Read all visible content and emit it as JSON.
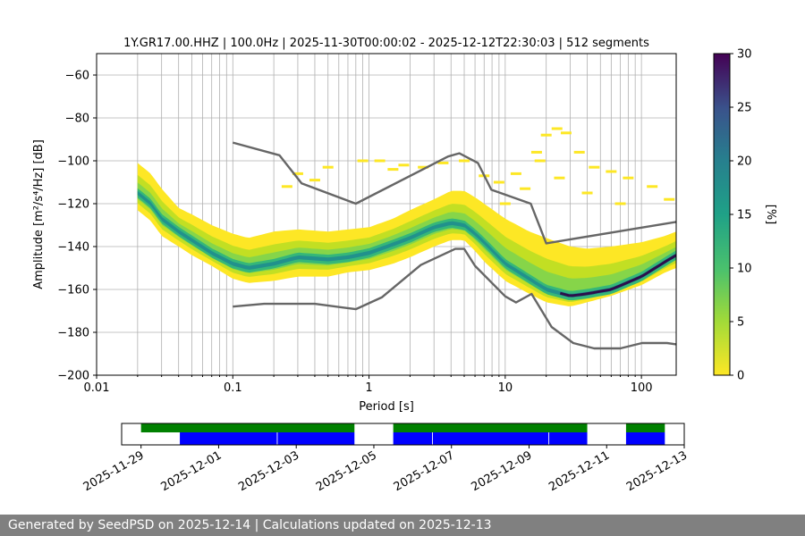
{
  "chart_data": {
    "type": "heatmap",
    "title": "1Y.GR17.00.HHZ | 100.0Hz | 2025-11-30T00:00:02 - 2025-12-12T22:30:03 | 512 segments",
    "xlabel": "Period [s]",
    "ylabel": "Amplitude [m²/s⁴/Hz] [dB]",
    "x_scale": "log",
    "xlim": [
      0.01,
      180
    ],
    "ylim": [
      -200,
      -50
    ],
    "x_ticks": [
      0.01,
      0.1,
      1,
      10,
      100
    ],
    "x_tick_labels": [
      "0.01",
      "0.1",
      "1",
      "10",
      "100"
    ],
    "y_ticks": [
      -200,
      -180,
      -160,
      -140,
      -120,
      -100,
      -80,
      -60
    ],
    "y_tick_labels": [
      "−200",
      "−180",
      "−160",
      "−140",
      "−120",
      "−100",
      "−80",
      "−60"
    ],
    "grid": "vertical minor log lines",
    "colorbar": {
      "label": "[%]",
      "range": [
        0,
        30
      ],
      "ticks": [
        0,
        5,
        10,
        15,
        20,
        25,
        30
      ],
      "tick_labels": [
        "0",
        "5",
        "10",
        "15",
        "20",
        "25",
        "30"
      ],
      "colormap": "viridis reversed"
    },
    "mode_curve": {
      "period": [
        0.02,
        0.025,
        0.03,
        0.04,
        0.05,
        0.07,
        0.1,
        0.13,
        0.2,
        0.3,
        0.5,
        0.7,
        1.0,
        1.5,
        2,
        3,
        4,
        5,
        6,
        7,
        10,
        15,
        20,
        30,
        40,
        60,
        100,
        150,
        180
      ],
      "db": [
        -115,
        -120,
        -127,
        -133,
        -137,
        -143,
        -148,
        -150,
        -148,
        -145,
        -146,
        -145,
        -143,
        -139,
        -136,
        -131,
        -129,
        -130,
        -134,
        -138,
        -148,
        -155,
        -160,
        -163,
        -162,
        -160,
        -154,
        -147,
        -144
      ]
    },
    "spread": {
      "period": [
        0.02,
        0.025,
        0.03,
        0.04,
        0.05,
        0.07,
        0.1,
        0.13,
        0.2,
        0.3,
        0.5,
        0.7,
        1.0,
        1.5,
        2,
        3,
        4,
        5,
        6,
        7,
        10,
        15,
        20,
        30,
        40,
        60,
        100,
        150,
        180
      ],
      "upper": [
        -101,
        -106,
        -113,
        -122,
        -125,
        -130,
        -134,
        -136,
        -133,
        -132,
        -133,
        -132,
        -131,
        -127,
        -123,
        -118,
        -114,
        -114,
        -117,
        -120,
        -127,
        -133,
        -136,
        -140,
        -141,
        -140,
        -138,
        -135,
        -133
      ],
      "lower": [
        -123,
        -128,
        -135,
        -140,
        -144,
        -149,
        -155,
        -157,
        -156,
        -154,
        -154,
        -152,
        -151,
        -148,
        -145,
        -140,
        -137,
        -137,
        -142,
        -147,
        -156,
        -162,
        -166,
        -168,
        -166,
        -163,
        -158,
        -152,
        -150
      ]
    },
    "sparse_scatter": [
      [
        0.3,
        -106
      ],
      [
        0.5,
        -103
      ],
      [
        0.9,
        -100
      ],
      [
        1.2,
        -100
      ],
      [
        1.8,
        -102
      ],
      [
        2.5,
        -103
      ],
      [
        3.5,
        -101
      ],
      [
        5.0,
        -100
      ],
      [
        7.0,
        -107
      ],
      [
        9.0,
        -110
      ],
      [
        12,
        -106
      ],
      [
        17,
        -96
      ],
      [
        20,
        -88
      ],
      [
        24,
        -85
      ],
      [
        28,
        -87
      ],
      [
        35,
        -96
      ],
      [
        45,
        -103
      ],
      [
        60,
        -105
      ],
      [
        80,
        -108
      ],
      [
        120,
        -112
      ],
      [
        160,
        -118
      ],
      [
        25,
        -108
      ],
      [
        40,
        -115
      ],
      [
        70,
        -120
      ],
      [
        0.25,
        -112
      ],
      [
        0.4,
        -109
      ],
      [
        1.5,
        -104
      ],
      [
        10,
        -120
      ],
      [
        14,
        -113
      ],
      [
        18,
        -100
      ]
    ],
    "noise_models": {
      "high": {
        "period": [
          0.1,
          0.22,
          0.32,
          0.8,
          3.8,
          4.6,
          6.3,
          7.9,
          15.4,
          20,
          180
        ],
        "db": [
          -91.5,
          -97.4,
          -110.5,
          -120,
          -98,
          -96.5,
          -101,
          -113.5,
          -120,
          -138.5,
          -128.5
        ]
      },
      "low": {
        "period": [
          0.1,
          0.17,
          0.4,
          0.8,
          1.24,
          2.4,
          4.3,
          5.0,
          6.0,
          10,
          12,
          15.6,
          21.9,
          31.6,
          45,
          70,
          101,
          154,
          180
        ],
        "db": [
          -168,
          -166.7,
          -166.7,
          -169.2,
          -163.7,
          -148.6,
          -141.1,
          -141.1,
          -149,
          -163.2,
          -166.1,
          -162.1,
          -177.5,
          -185,
          -187.5,
          -187.5,
          -185,
          -185,
          -185.6
        ]
      }
    },
    "timeline": {
      "tick_labels": [
        "2025-11-29",
        "2025-12-01",
        "2025-12-03",
        "2025-12-05",
        "2025-12-07",
        "2025-12-09",
        "2025-12-11",
        "2025-12-13"
      ],
      "start_day": 0,
      "end_day": 14.5,
      "green_segments": [
        [
          0.5,
          6.0
        ],
        [
          7.0,
          12.0
        ],
        [
          13.0,
          14.0
        ]
      ],
      "blue_segments": [
        [
          1.5,
          4.0
        ],
        [
          4.02,
          6.0
        ],
        [
          7.0,
          8.0
        ],
        [
          8.02,
          11.0
        ],
        [
          11.02,
          12.0
        ],
        [
          13.0,
          14.0
        ]
      ],
      "colors": {
        "green": "#008000",
        "blue": "#0000ff"
      }
    }
  },
  "footer": {
    "text": "Generated by SeedPSD on 2025-12-14 | Calculations updated on 2025-12-13"
  }
}
